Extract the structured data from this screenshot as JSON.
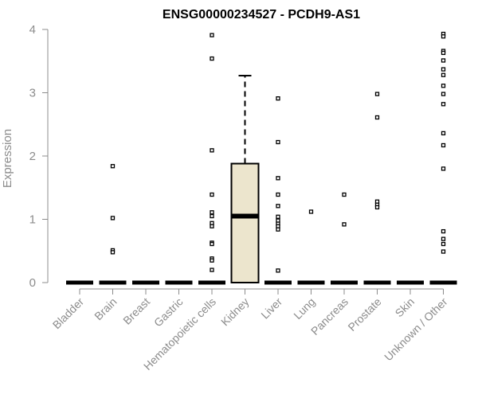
{
  "chart_data": {
    "type": "box",
    "title": "ENSG00000234527 - PCDH9-AS1",
    "xlabel": "",
    "ylabel": "Expression",
    "ylim": [
      0,
      4
    ],
    "yticks": [
      0,
      1,
      2,
      3,
      4
    ],
    "grid": false,
    "colors": {
      "box_fill": "#ece5cd",
      "stroke": "#000000",
      "axis": "#8c8c8c",
      "label": "#8c8c8c"
    },
    "categories": [
      "Bladder",
      "Brain",
      "Breast",
      "Gastric",
      "Hematopoietic cells",
      "Kidney",
      "Liver",
      "Lung",
      "Pancreas",
      "Prostate",
      "Skin",
      "Unknown / Other"
    ],
    "boxes": [
      {
        "category": "Bladder",
        "q1": 0,
        "median": 0,
        "q3": 0,
        "whisker_low": 0,
        "whisker_high": 0,
        "outliers": []
      },
      {
        "category": "Brain",
        "q1": 0,
        "median": 0,
        "q3": 0,
        "whisker_low": 0,
        "whisker_high": 0,
        "outliers": [
          1.84,
          1.02,
          0.51,
          0.48
        ]
      },
      {
        "category": "Breast",
        "q1": 0,
        "median": 0,
        "q3": 0,
        "whisker_low": 0,
        "whisker_high": 0,
        "outliers": []
      },
      {
        "category": "Gastric",
        "q1": 0,
        "median": 0,
        "q3": 0,
        "whisker_low": 0,
        "whisker_high": 0,
        "outliers": []
      },
      {
        "category": "Hematopoietic cells",
        "q1": 0,
        "median": 0,
        "q3": 0,
        "whisker_low": 0,
        "whisker_high": 0,
        "outliers": [
          3.91,
          3.54,
          2.09,
          1.39,
          1.11,
          1.05,
          0.94,
          0.89,
          0.63,
          0.61,
          0.38,
          0.35,
          0.2
        ]
      },
      {
        "category": "Kidney",
        "q1": 0,
        "median": 1.05,
        "q3": 1.88,
        "whisker_low": 0,
        "whisker_high": 3.27,
        "outliers": []
      },
      {
        "category": "Liver",
        "q1": 0,
        "median": 0,
        "q3": 0,
        "whisker_low": 0,
        "whisker_high": 0,
        "outliers": [
          2.91,
          2.22,
          1.65,
          1.39,
          1.21,
          1.04,
          0.98,
          0.93,
          0.89,
          0.84,
          0.19
        ]
      },
      {
        "category": "Lung",
        "q1": 0,
        "median": 0,
        "q3": 0,
        "whisker_low": 0,
        "whisker_high": 0,
        "outliers": [
          1.12
        ]
      },
      {
        "category": "Pancreas",
        "q1": 0,
        "median": 0,
        "q3": 0,
        "whisker_low": 0,
        "whisker_high": 0,
        "outliers": [
          1.39,
          0.92
        ]
      },
      {
        "category": "Prostate",
        "q1": 0,
        "median": 0,
        "q3": 0,
        "whisker_low": 0,
        "whisker_high": 0,
        "outliers": [
          2.98,
          2.61,
          1.28,
          1.23,
          1.19
        ]
      },
      {
        "category": "Skin",
        "q1": 0,
        "median": 0,
        "q3": 0,
        "whisker_low": 0,
        "whisker_high": 0,
        "outliers": []
      },
      {
        "category": "Unknown / Other",
        "q1": 0,
        "median": 0,
        "q3": 0,
        "whisker_low": 0,
        "whisker_high": 0,
        "outliers": [
          3.93,
          3.89,
          3.66,
          3.63,
          3.51,
          3.37,
          3.28,
          3.11,
          2.98,
          2.82,
          2.36,
          2.17,
          1.8,
          0.81,
          0.69,
          0.61,
          0.49
        ]
      }
    ]
  }
}
